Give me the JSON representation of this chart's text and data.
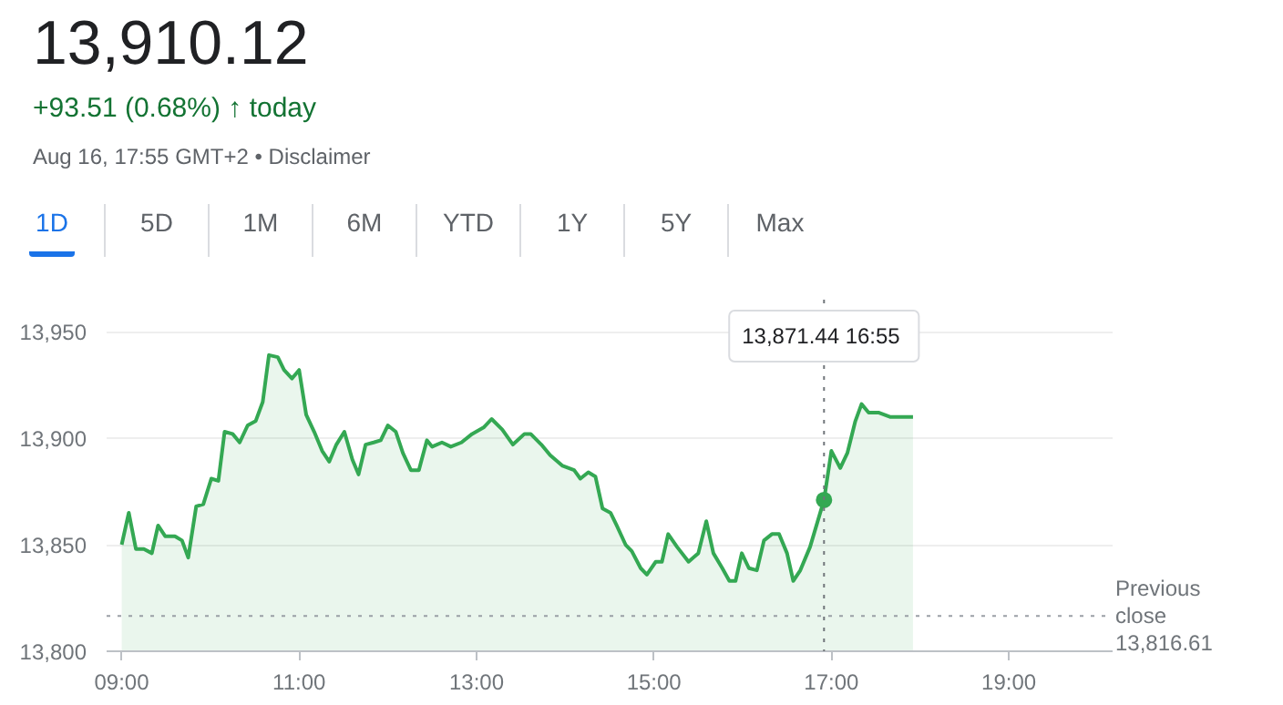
{
  "chart_data": {
    "type": "area",
    "title": "13,910.12",
    "subtitle": "+93.51 (0.68%) ↑ today",
    "annotations": [
      "Aug 16, 17:55 GMT+2 • Disclaimer",
      "1D",
      "5D",
      "1M",
      "6M",
      "YTD",
      "1Y",
      "5Y",
      "Max",
      "13,871.44  16:55"
    ],
    "x": [
      9.0,
      9.08,
      9.16,
      9.25,
      9.34,
      9.41,
      9.49,
      9.6,
      9.68,
      9.75,
      9.84,
      9.92,
      10.01,
      10.09,
      10.16,
      10.25,
      10.33,
      10.42,
      10.51,
      10.59,
      10.66,
      10.76,
      10.83,
      10.92,
      11.0,
      11.08,
      11.17,
      11.26,
      11.34,
      11.42,
      11.51,
      11.6,
      11.67,
      11.75,
      11.84,
      11.92,
      12.0,
      12.09,
      12.17,
      12.26,
      12.35,
      12.44,
      12.5,
      12.61,
      12.71,
      12.83,
      12.95,
      13.08,
      13.17,
      13.29,
      13.41,
      13.54,
      13.61,
      13.73,
      13.83,
      13.97,
      14.1,
      14.17,
      14.26,
      14.34,
      14.42,
      14.51,
      14.58,
      14.68,
      14.75,
      14.85,
      14.92,
      15.02,
      15.09,
      15.16,
      15.26,
      15.39,
      15.5,
      15.59,
      15.67,
      15.77,
      15.85,
      15.92,
      15.99,
      16.07,
      16.16,
      16.24,
      16.33,
      16.41,
      16.5,
      16.57,
      16.65,
      16.76,
      16.917,
      17.0,
      17.1,
      17.18,
      17.27,
      17.34,
      17.42,
      17.53,
      17.66,
      17.92
    ],
    "series": [
      {
        "color": "#34a853",
        "values": [
          13850,
          13865,
          13848,
          13848,
          13846,
          13859,
          13854,
          13854,
          13852,
          13844,
          13868,
          13869,
          13881,
          13880,
          13903,
          13902,
          13898,
          13906,
          13908,
          13917,
          13939,
          13938,
          13932,
          13928,
          13932,
          13911,
          13903,
          13894,
          13889,
          13897,
          13903,
          13890,
          13883,
          13897,
          13898,
          13899,
          13906,
          13903,
          13893,
          13885,
          13885,
          13899,
          13896,
          13898,
          13896,
          13898,
          13902,
          13905,
          13909,
          13904,
          13897,
          13902,
          13902,
          13897,
          13892,
          13887,
          13885,
          13881,
          13884,
          13882,
          13867,
          13865,
          13859,
          13850,
          13847,
          13839,
          13836,
          13842,
          13842,
          13855,
          13849,
          13842,
          13846,
          13861,
          13846,
          13839,
          13833,
          13833,
          13846,
          13839,
          13838,
          13852,
          13855,
          13855,
          13846,
          13833,
          13838,
          13849,
          13871,
          13894,
          13886,
          13893,
          13908,
          13916,
          13912,
          13912,
          13910,
          13910
        ]
      },
      {
        "type": "scatter",
        "color": "#34a853",
        "x": [
          16.917
        ],
        "values": [
          13871
        ]
      }
    ],
    "xlim": [
      8.83,
      20.17
    ],
    "ylim": [
      13800,
      13965
    ],
    "xticks": [
      {
        "value": 9,
        "label": "09:00"
      },
      {
        "value": 11,
        "label": "11:00"
      },
      {
        "value": 13,
        "label": "13:00"
      },
      {
        "value": 15,
        "label": "15:00"
      },
      {
        "value": 17,
        "label": "17:00"
      },
      {
        "value": 19,
        "label": "19:00"
      }
    ],
    "yticks": [
      {
        "value": 13800,
        "label": "13,800"
      },
      {
        "value": 13850,
        "label": "13,850"
      },
      {
        "value": 13900,
        "label": "13,900"
      },
      {
        "value": 13950,
        "label": "13,950"
      }
    ],
    "grid": "y",
    "ref_lines": [
      {
        "axis": "y",
        "value": 13816.61,
        "label": "Previous\nclose\n13,816.61",
        "color": "#9aa0a6",
        "line_style": "dotted"
      },
      {
        "axis": "x",
        "value": 16.917,
        "label": null,
        "color": "#70757a",
        "line_style": "dotted"
      }
    ]
  }
}
